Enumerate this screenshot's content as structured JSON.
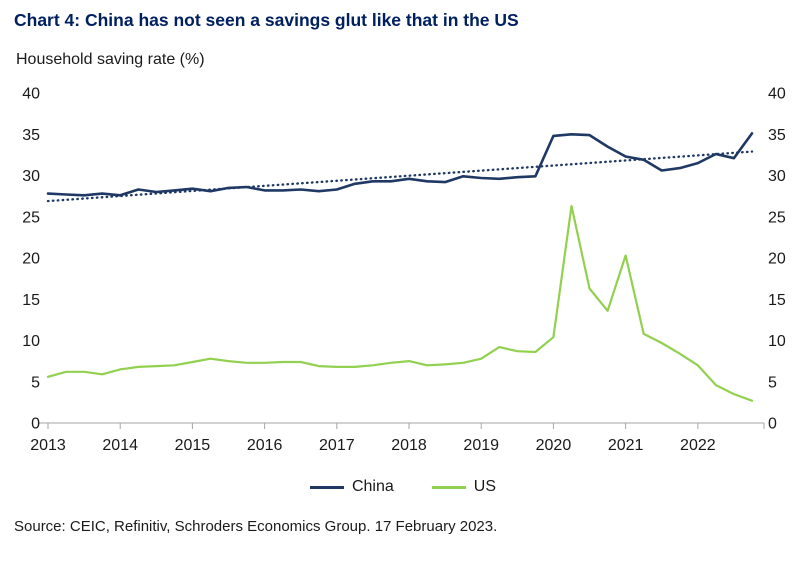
{
  "header": {
    "title": "Chart 4: China has not seen a savings glut like that in the US"
  },
  "chart_data": {
    "type": "line",
    "title": "Chart 4: China has not seen a savings glut like that in the US",
    "ylabel": "Household saving rate (%)",
    "xlabel": "",
    "x_start": 2013,
    "x_step": 0.25,
    "ylim": [
      0,
      40
    ],
    "y_ticks": [
      0,
      5,
      10,
      15,
      20,
      25,
      30,
      35,
      40
    ],
    "x_ticks": [
      2013,
      2014,
      2015,
      2016,
      2017,
      2018,
      2019,
      2020,
      2021,
      2022
    ],
    "grid": false,
    "legend_position": "bottom",
    "series": [
      {
        "name": "China",
        "color": "#1f3864",
        "width": 2.6,
        "values": [
          27.8,
          27.7,
          27.6,
          27.8,
          27.6,
          28.3,
          28.0,
          28.2,
          28.4,
          28.1,
          28.5,
          28.6,
          28.2,
          28.2,
          28.3,
          28.1,
          28.3,
          29.0,
          29.3,
          29.3,
          29.6,
          29.3,
          29.2,
          29.9,
          29.7,
          29.6,
          29.8,
          29.9,
          34.8,
          35.0,
          34.9,
          33.5,
          32.3,
          31.9,
          30.6,
          30.9,
          31.5,
          32.6,
          32.1,
          35.1
        ]
      },
      {
        "name": "US",
        "color": "#92d050",
        "width": 2.2,
        "values": [
          5.6,
          6.2,
          6.2,
          5.9,
          6.5,
          6.8,
          6.9,
          7.0,
          7.4,
          7.8,
          7.5,
          7.3,
          7.3,
          7.4,
          7.4,
          6.9,
          6.8,
          6.8,
          7.0,
          7.3,
          7.5,
          7.0,
          7.1,
          7.3,
          7.8,
          9.2,
          8.7,
          8.6,
          10.4,
          26.3,
          16.3,
          13.6,
          20.3,
          10.8,
          9.7,
          8.4,
          7.0,
          4.6,
          3.5,
          2.7
        ]
      }
    ],
    "trend": {
      "name": "China linear trend",
      "color": "#1f3864",
      "style": "dotted",
      "x": [
        2013,
        2022.75
      ],
      "values": [
        26.9,
        32.9
      ]
    }
  },
  "footer": {
    "source": "Source: CEIC, Refinitiv, Schroders Economics Group. 17 February 2023."
  }
}
